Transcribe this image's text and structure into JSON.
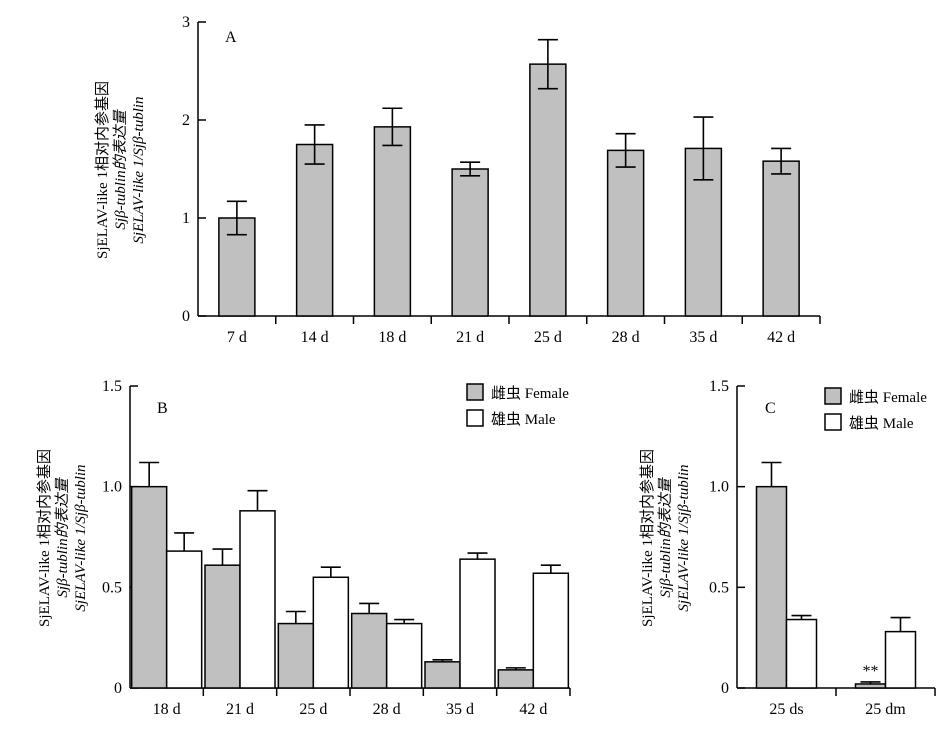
{
  "colors": {
    "female": "#c0c0c0",
    "male": "#ffffff",
    "single": "#c0c0c0",
    "axis": "#000000"
  },
  "chart_data": [
    {
      "type": "bar",
      "panel": "A",
      "categories": [
        "7 d",
        "14 d",
        "18 d",
        "21 d",
        "25 d",
        "28 d",
        "35 d",
        "42 d"
      ],
      "series": [
        {
          "values": [
            1.0,
            1.75,
            1.93,
            1.5,
            2.57,
            1.69,
            1.71,
            1.58
          ],
          "errors": [
            0.17,
            0.2,
            0.19,
            0.07,
            0.25,
            0.17,
            0.32,
            0.13
          ]
        }
      ],
      "ylim": [
        0,
        3
      ],
      "yticks": [
        "0",
        "1",
        "2",
        "3"
      ],
      "ylabel": [
        "SjELAV-like 1相对内参基因",
        "Sjβ-tublin的表达量",
        "SjELAV-like 1/Sjβ-tublin"
      ]
    },
    {
      "type": "bar",
      "panel": "B",
      "categories": [
        "18 d",
        "21 d",
        "25 d",
        "28 d",
        "35 d",
        "42 d"
      ],
      "series": [
        {
          "name": "雌虫 Female",
          "values": [
            1.0,
            0.61,
            0.32,
            0.37,
            0.13,
            0.09
          ],
          "errors": [
            0.12,
            0.08,
            0.06,
            0.05,
            0.01,
            0.01
          ]
        },
        {
          "name": "雄虫 Male",
          "values": [
            0.68,
            0.88,
            0.55,
            0.32,
            0.64,
            0.57
          ],
          "errors": [
            0.09,
            0.1,
            0.05,
            0.02,
            0.03,
            0.04
          ]
        }
      ],
      "ylim": [
        0,
        1.5
      ],
      "yticks": [
        "0",
        "0.5",
        "1.0",
        "1.5"
      ],
      "ylabel": [
        "SjELAV-like 1相对内参基因",
        "Sjβ-tublin的表达量",
        "SjELAV-like 1/Sjβ-tublin"
      ],
      "legend_position": "top-right"
    },
    {
      "type": "bar",
      "panel": "C",
      "categories": [
        "25 ds",
        "25 dm"
      ],
      "series": [
        {
          "name": "雌虫 Female",
          "values": [
            1.0,
            0.02
          ],
          "errors": [
            0.12,
            0.01
          ]
        },
        {
          "name": "雄虫 Male",
          "values": [
            0.34,
            0.28
          ],
          "errors": [
            0.02,
            0.07
          ]
        }
      ],
      "annotations": [
        {
          "category": "25 dm",
          "series": "雌虫 Female",
          "text": "**"
        }
      ],
      "ylim": [
        0,
        1.5
      ],
      "yticks": [
        "0",
        "0.5",
        "1.0",
        "1.5"
      ],
      "ylabel": [
        "SjELAV-like 1相对内参基因",
        "Sjβ-tublin的表达量",
        "SjELAV-like 1/Sjβ-tublin"
      ],
      "legend_position": "top-right"
    }
  ]
}
